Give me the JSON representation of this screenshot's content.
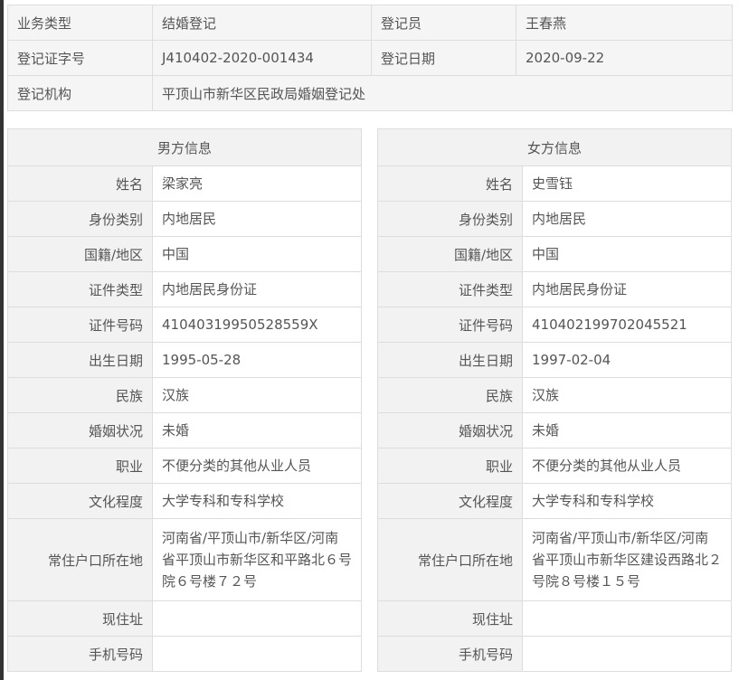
{
  "summary": {
    "rows": [
      [
        "业务类型",
        "结婚登记",
        "登记员",
        "王春燕"
      ],
      [
        "登记证字号",
        "J410402-2020-001434",
        "登记日期",
        "2020-09-22"
      ]
    ],
    "org_label": "登记机构",
    "org_value": "平顶山市新华区民政局婚姻登记处"
  },
  "labels": [
    "姓名",
    "身份类别",
    "国籍/地区",
    "证件类型",
    "证件号码",
    "出生日期",
    "民族",
    "婚姻状况",
    "职业",
    "文化程度",
    "常住户口所在地",
    "现住址",
    "手机号码"
  ],
  "male": {
    "title": "男方信息",
    "values": [
      "梁家亮",
      "内地居民",
      "中国",
      "内地居民身份证",
      "41040319950528559X",
      "1995-05-28",
      "汉族",
      "未婚",
      "不便分类的其他从业人员",
      "大学专科和专科学校",
      "河南省/平顶山市/新华区/河南省平顶山市新华区和平路北６号院６号楼７２号",
      "",
      ""
    ]
  },
  "female": {
    "title": "女方信息",
    "values": [
      "史雪钰",
      "内地居民",
      "中国",
      "内地居民身份证",
      "410402199702045521",
      "1997-02-04",
      "汉族",
      "未婚",
      "不便分类的其他从业人员",
      "大学专科和专科学校",
      "河南省/平顶山市/新华区/河南省平顶山市新华区建设西路北２号院８号楼１５号",
      "",
      ""
    ]
  }
}
